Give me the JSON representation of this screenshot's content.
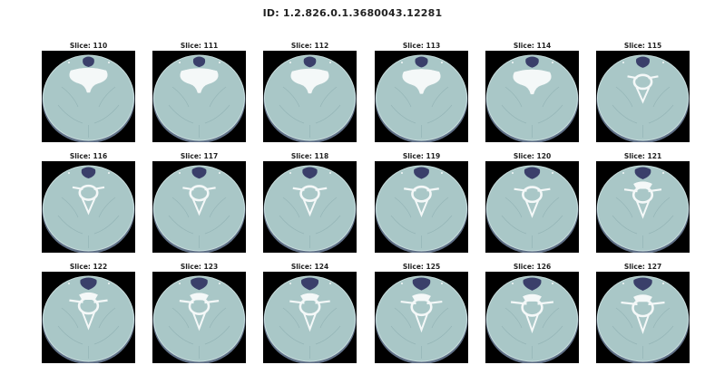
{
  "figure": {
    "title": "ID: 1.2.826.0.1.3680043.12281"
  },
  "panels": [
    {
      "label": "Slice: 110",
      "slice": 110
    },
    {
      "label": "Slice: 111",
      "slice": 111
    },
    {
      "label": "Slice: 112",
      "slice": 112
    },
    {
      "label": "Slice: 113",
      "slice": 113
    },
    {
      "label": "Slice: 114",
      "slice": 114
    },
    {
      "label": "Slice: 115",
      "slice": 115
    },
    {
      "label": "Slice: 116",
      "slice": 116
    },
    {
      "label": "Slice: 117",
      "slice": 117
    },
    {
      "label": "Slice: 118",
      "slice": 118
    },
    {
      "label": "Slice: 119",
      "slice": 119
    },
    {
      "label": "Slice: 120",
      "slice": 120
    },
    {
      "label": "Slice: 121",
      "slice": 121
    },
    {
      "label": "Slice: 122",
      "slice": 122
    },
    {
      "label": "Slice: 123",
      "slice": 123
    },
    {
      "label": "Slice: 124",
      "slice": 124
    },
    {
      "label": "Slice: 125",
      "slice": 125
    },
    {
      "label": "Slice: 126",
      "slice": 126
    },
    {
      "label": "Slice: 127",
      "slice": 127
    }
  ],
  "colors": {
    "background": "#000000",
    "soft_tissue": "#a9c7c7",
    "soft_tissue_edge": "#c9dede",
    "fat_rim": "#5f6f86",
    "bone": "#f4f8f8",
    "airway": "#3a3f6a"
  }
}
